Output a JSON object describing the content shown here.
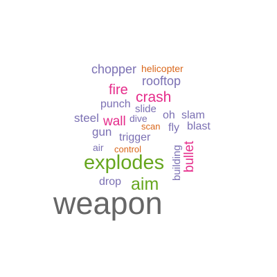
{
  "word_cloud": {
    "colors": {
      "purple": "#7b70b3",
      "orange": "#d9661a",
      "pink": "#e52b8a",
      "green": "#66a61e",
      "gray": "#666666"
    },
    "words": [
      {
        "text": "chopper",
        "color": "purple"
      },
      {
        "text": "helicopter",
        "color": "orange"
      },
      {
        "text": "rooftop",
        "color": "purple"
      },
      {
        "text": "fire",
        "color": "pink"
      },
      {
        "text": "crash",
        "color": "pink"
      },
      {
        "text": "punch",
        "color": "purple"
      },
      {
        "text": "slide",
        "color": "purple"
      },
      {
        "text": "steel",
        "color": "purple"
      },
      {
        "text": "wall",
        "color": "pink"
      },
      {
        "text": "dive",
        "color": "purple"
      },
      {
        "text": "oh",
        "color": "purple"
      },
      {
        "text": "slam",
        "color": "purple"
      },
      {
        "text": "gun",
        "color": "purple"
      },
      {
        "text": "scan",
        "color": "orange"
      },
      {
        "text": "fly",
        "color": "purple"
      },
      {
        "text": "blast",
        "color": "purple"
      },
      {
        "text": "trigger",
        "color": "purple"
      },
      {
        "text": "air",
        "color": "purple"
      },
      {
        "text": "control",
        "color": "orange"
      },
      {
        "text": "building",
        "color": "purple"
      },
      {
        "text": "bullet",
        "color": "pink"
      },
      {
        "text": "explodes",
        "color": "green"
      },
      {
        "text": "drop",
        "color": "purple"
      },
      {
        "text": "aim",
        "color": "green"
      },
      {
        "text": "weapon",
        "color": "gray"
      }
    ]
  }
}
